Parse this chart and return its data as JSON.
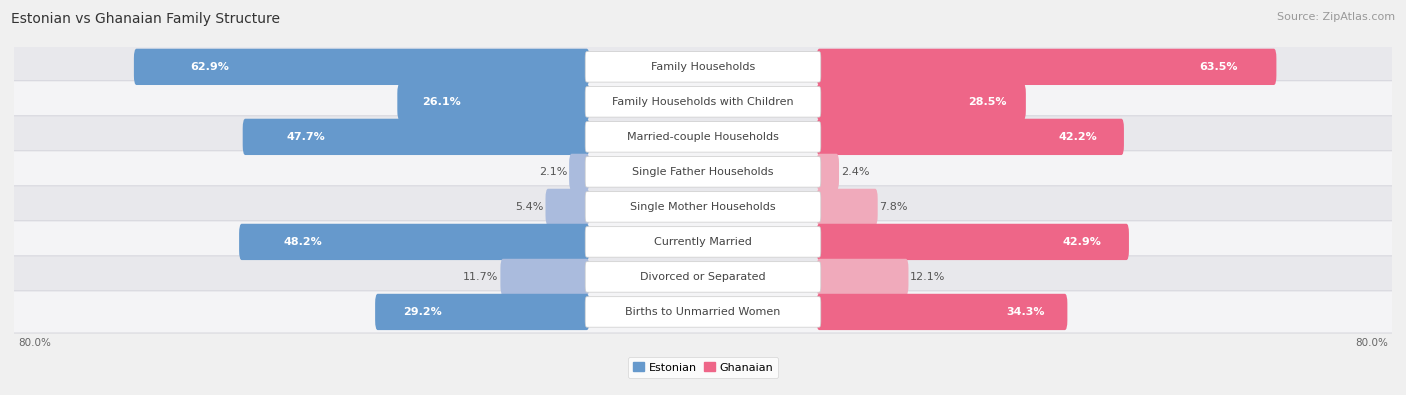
{
  "title": "Estonian vs Ghanaian Family Structure",
  "source": "Source: ZipAtlas.com",
  "categories": [
    "Family Households",
    "Family Households with Children",
    "Married-couple Households",
    "Single Father Households",
    "Single Mother Households",
    "Currently Married",
    "Divorced or Separated",
    "Births to Unmarried Women"
  ],
  "estonian_values": [
    62.9,
    26.1,
    47.7,
    2.1,
    5.4,
    48.2,
    11.7,
    29.2
  ],
  "ghanaian_values": [
    63.5,
    28.5,
    42.2,
    2.4,
    7.8,
    42.9,
    12.1,
    34.3
  ],
  "estonian_color_strong": "#6699cc",
  "estonian_color_light": "#aabbdd",
  "ghanaian_color_strong": "#ee6688",
  "ghanaian_color_light": "#f0aabb",
  "axis_max": 80.0,
  "bg_color": "#f0f0f0",
  "row_colors": [
    "#e8e8ec",
    "#f4f4f6"
  ],
  "label_font_size": 8.0,
  "title_font_size": 10,
  "source_font_size": 8,
  "strong_threshold": 15
}
